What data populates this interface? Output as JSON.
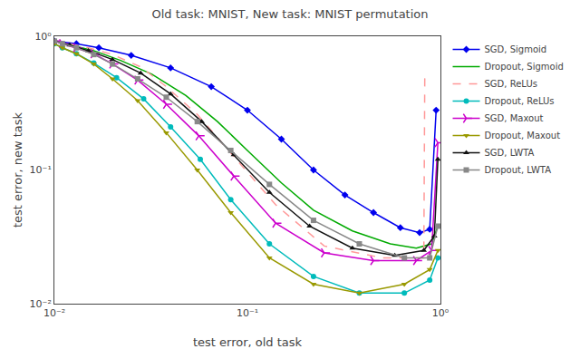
{
  "chart_data": {
    "type": "line",
    "title": "Old task: MNIST, New task: MNIST permutation",
    "xlabel": "test error, old task",
    "ylabel": "test error, new task",
    "log": true,
    "xlim": [
      0.01,
      1.0
    ],
    "ylim": [
      0.01,
      1.0
    ],
    "xticks": [
      {
        "value": 0.01,
        "label": "10⁻²"
      },
      {
        "value": 0.1,
        "label": "10⁻¹"
      },
      {
        "value": 1.0,
        "label": "10⁰"
      }
    ],
    "yticks": [
      {
        "value": 0.01,
        "label": "10⁻²"
      },
      {
        "value": 0.1,
        "label": "10⁻¹"
      },
      {
        "value": 1.0,
        "label": "10⁰"
      }
    ],
    "grid": false,
    "legend": "upper right",
    "series": [
      {
        "name": "SGD, Sigmoid",
        "color": "#0000ee",
        "marker": "diamond",
        "line_style": "solid",
        "x": [
          0.01,
          0.013,
          0.017,
          0.025,
          0.04,
          0.065,
          0.1,
          0.15,
          0.22,
          0.32,
          0.45,
          0.62,
          0.78,
          0.88,
          0.95
        ],
        "values": [
          0.92,
          0.88,
          0.82,
          0.72,
          0.58,
          0.42,
          0.28,
          0.17,
          0.1,
          0.065,
          0.048,
          0.037,
          0.034,
          0.036,
          0.28
        ]
      },
      {
        "name": "Dropout, Sigmoid",
        "color": "#00aa00",
        "marker": "none",
        "line_style": "solid",
        "x": [
          0.01,
          0.012,
          0.016,
          0.022,
          0.032,
          0.048,
          0.07,
          0.1,
          0.15,
          0.22,
          0.35,
          0.55,
          0.75,
          0.9,
          0.97
        ],
        "values": [
          0.92,
          0.86,
          0.78,
          0.66,
          0.52,
          0.36,
          0.23,
          0.14,
          0.08,
          0.05,
          0.035,
          0.028,
          0.026,
          0.028,
          0.038
        ]
      },
      {
        "name": "SGD, ReLUs",
        "color": "#ff9999",
        "marker": "none",
        "line_style": "dashed",
        "x": [
          0.01,
          0.012,
          0.015,
          0.02,
          0.028,
          0.038,
          0.055,
          0.08,
          0.14,
          0.25,
          0.5,
          0.82,
          0.83
        ],
        "values": [
          0.92,
          0.88,
          0.82,
          0.73,
          0.59,
          0.42,
          0.26,
          0.14,
          0.055,
          0.027,
          0.022,
          0.022,
          0.55
        ]
      },
      {
        "name": "Dropout, ReLUs",
        "color": "#00bbbb",
        "marker": "circle",
        "line_style": "solid",
        "x": [
          0.01,
          0.011,
          0.013,
          0.016,
          0.021,
          0.029,
          0.04,
          0.057,
          0.082,
          0.13,
          0.22,
          0.38,
          0.65,
          0.88,
          0.97
        ],
        "values": [
          0.88,
          0.82,
          0.74,
          0.63,
          0.49,
          0.34,
          0.21,
          0.12,
          0.06,
          0.028,
          0.016,
          0.012,
          0.012,
          0.015,
          0.022
        ]
      },
      {
        "name": "SGD, Maxout",
        "color": "#cc00cc",
        "marker": "tri_right",
        "line_style": "solid",
        "x": [
          0.01,
          0.011,
          0.013,
          0.016,
          0.02,
          0.027,
          0.038,
          0.056,
          0.085,
          0.14,
          0.25,
          0.45,
          0.75,
          0.9,
          0.97
        ],
        "values": [
          0.92,
          0.88,
          0.82,
          0.74,
          0.62,
          0.47,
          0.31,
          0.18,
          0.09,
          0.04,
          0.024,
          0.021,
          0.021,
          0.025,
          0.16
        ]
      },
      {
        "name": "Dropout, Maxout",
        "color": "#999900",
        "marker": "triangle-down",
        "line_style": "solid",
        "x": [
          0.01,
          0.011,
          0.013,
          0.016,
          0.02,
          0.027,
          0.038,
          0.055,
          0.082,
          0.13,
          0.22,
          0.38,
          0.65,
          0.88,
          0.97
        ],
        "values": [
          0.88,
          0.82,
          0.74,
          0.62,
          0.48,
          0.33,
          0.19,
          0.1,
          0.048,
          0.022,
          0.014,
          0.012,
          0.014,
          0.018,
          0.025
        ]
      },
      {
        "name": "SGD, LWTA",
        "color": "#111111",
        "marker": "triangle-up",
        "line_style": "solid",
        "x": [
          0.01,
          0.012,
          0.015,
          0.02,
          0.028,
          0.04,
          0.058,
          0.085,
          0.13,
          0.21,
          0.35,
          0.58,
          0.82,
          0.93,
          0.97
        ],
        "values": [
          0.92,
          0.86,
          0.78,
          0.67,
          0.53,
          0.37,
          0.23,
          0.13,
          0.068,
          0.038,
          0.026,
          0.023,
          0.025,
          0.032,
          0.12
        ]
      },
      {
        "name": "Dropout, LWTA",
        "color": "#888888",
        "marker": "square",
        "line_style": "solid",
        "x": [
          0.01,
          0.011,
          0.013,
          0.016,
          0.02,
          0.027,
          0.038,
          0.055,
          0.082,
          0.13,
          0.22,
          0.38,
          0.65,
          0.88,
          0.97
        ],
        "values": [
          0.92,
          0.88,
          0.82,
          0.73,
          0.62,
          0.48,
          0.35,
          0.23,
          0.14,
          0.078,
          0.042,
          0.028,
          0.022,
          0.022,
          0.038
        ]
      }
    ]
  }
}
